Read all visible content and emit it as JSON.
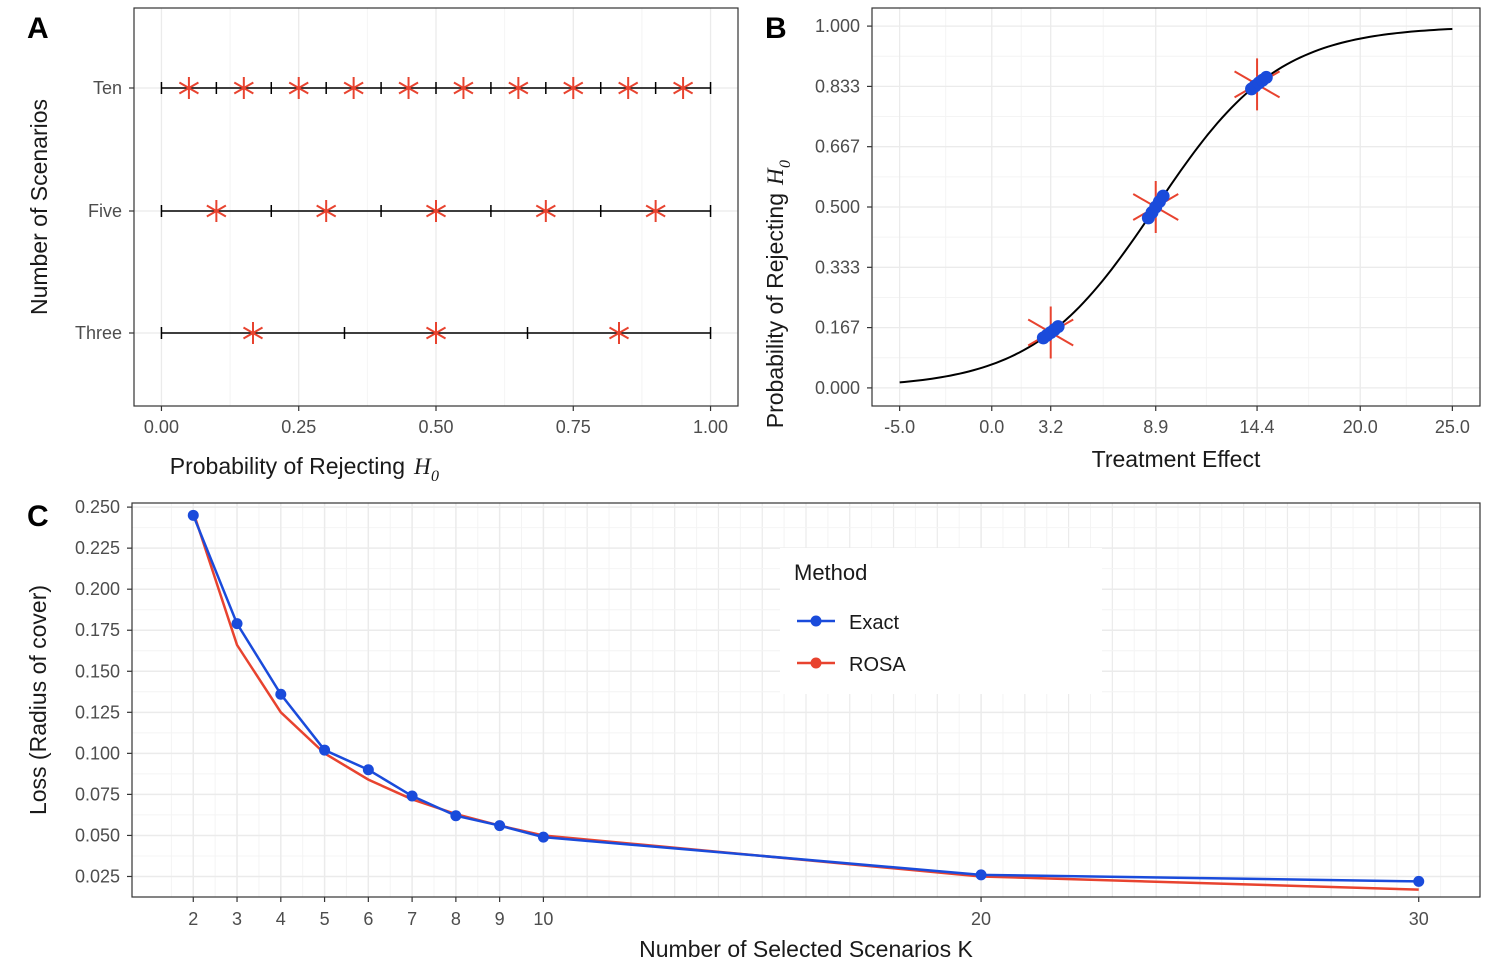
{
  "chart_data": [
    {
      "panel": "A",
      "type": "scatter",
      "xlabel": "Probability of Rejecting",
      "xlabel_symbol": "H",
      "xlabel_sub": "0",
      "ylabel": "Number of Scenarios",
      "xlim": [
        -0.05,
        1.05
      ],
      "xticks": [
        "0.00",
        "0.25",
        "0.50",
        "0.75",
        "1.00"
      ],
      "xtick_values": [
        0,
        0.25,
        0.5,
        0.75,
        1.0
      ],
      "rows": [
        {
          "name": "Ten",
          "k": 10,
          "markers": [
            0.05,
            0.15,
            0.25,
            0.35,
            0.45,
            0.55,
            0.65,
            0.75,
            0.85,
            0.95
          ]
        },
        {
          "name": "Five",
          "k": 5,
          "markers": [
            0.1,
            0.3,
            0.5,
            0.7,
            0.9
          ]
        },
        {
          "name": "Three",
          "k": 3,
          "markers": [
            0.1667,
            0.5,
            0.8333
          ]
        }
      ],
      "marker_color": "#e8432f"
    },
    {
      "panel": "B",
      "type": "line",
      "xlabel": "Treatment Effect",
      "ylabel": "Probability of Rejecting",
      "ylabel_symbol": "H",
      "ylabel_sub": "0",
      "xlim": [
        -6.5,
        26.5
      ],
      "ylim": [
        -0.05,
        1.05
      ],
      "xticks": [
        "-5.0",
        "0.0",
        "3.2",
        "8.9",
        "14.4",
        "20.0",
        "25.0"
      ],
      "xtick_values": [
        -5,
        0,
        3.2,
        8.9,
        14.4,
        20,
        25
      ],
      "yticks": [
        "0.000",
        "0.167",
        "0.333",
        "0.500",
        "0.667",
        "0.833",
        "1.000"
      ],
      "ytick_values": [
        0,
        0.1667,
        0.3333,
        0.5,
        0.6667,
        0.8333,
        1.0
      ],
      "curve": {
        "type": "logistic",
        "midpoint": 8.9,
        "rate": 0.3
      },
      "stars": [
        3.2,
        8.9,
        14.4
      ],
      "points": [
        [
          2.8,
          3.0,
          3.2,
          3.4,
          3.6
        ],
        [
          8.5,
          8.7,
          8.9,
          9.1,
          9.3
        ],
        [
          14.1,
          14.3,
          14.5,
          14.7,
          14.9
        ]
      ],
      "star_color": "#e8432f",
      "point_color": "#1a4bdb"
    },
    {
      "panel": "C",
      "type": "line",
      "xlabel": "Number of Selected Scenarios K",
      "ylabel": "Loss (Radius of cover)",
      "xlim": [
        0.6,
        31.4
      ],
      "ylim": [
        0.0125,
        0.2525
      ],
      "xticks": [
        "2",
        "3",
        "4",
        "5",
        "6",
        "7",
        "8",
        "9",
        "10",
        "20",
        "30"
      ],
      "xtick_values": [
        2,
        3,
        4,
        5,
        6,
        7,
        8,
        9,
        10,
        20,
        30
      ],
      "yticks": [
        "0.025",
        "0.050",
        "0.075",
        "0.100",
        "0.125",
        "0.150",
        "0.175",
        "0.200",
        "0.225",
        "0.250"
      ],
      "ytick_values": [
        0.025,
        0.05,
        0.075,
        0.1,
        0.125,
        0.15,
        0.175,
        0.2,
        0.225,
        0.25
      ],
      "legend": {
        "title": "Method",
        "entries": [
          "Exact",
          "ROSA"
        ],
        "position": "top-right"
      },
      "series": [
        {
          "name": "Exact",
          "color": "#1a4bdb",
          "x": [
            2,
            3,
            4,
            5,
            6,
            7,
            8,
            9,
            10,
            20,
            30
          ],
          "y": [
            0.245,
            0.179,
            0.136,
            0.102,
            0.09,
            0.074,
            0.062,
            0.056,
            0.049,
            0.026,
            0.022
          ]
        },
        {
          "name": "ROSA",
          "color": "#e8432f",
          "x": [
            2,
            3,
            4,
            5,
            6,
            7,
            8,
            9,
            10,
            20,
            30
          ],
          "y": [
            0.247,
            0.166,
            0.125,
            0.1,
            0.084,
            0.072,
            0.063,
            0.056,
            0.05,
            0.025,
            0.017
          ]
        }
      ]
    }
  ],
  "panel_labels": [
    "A",
    "B",
    "C"
  ]
}
